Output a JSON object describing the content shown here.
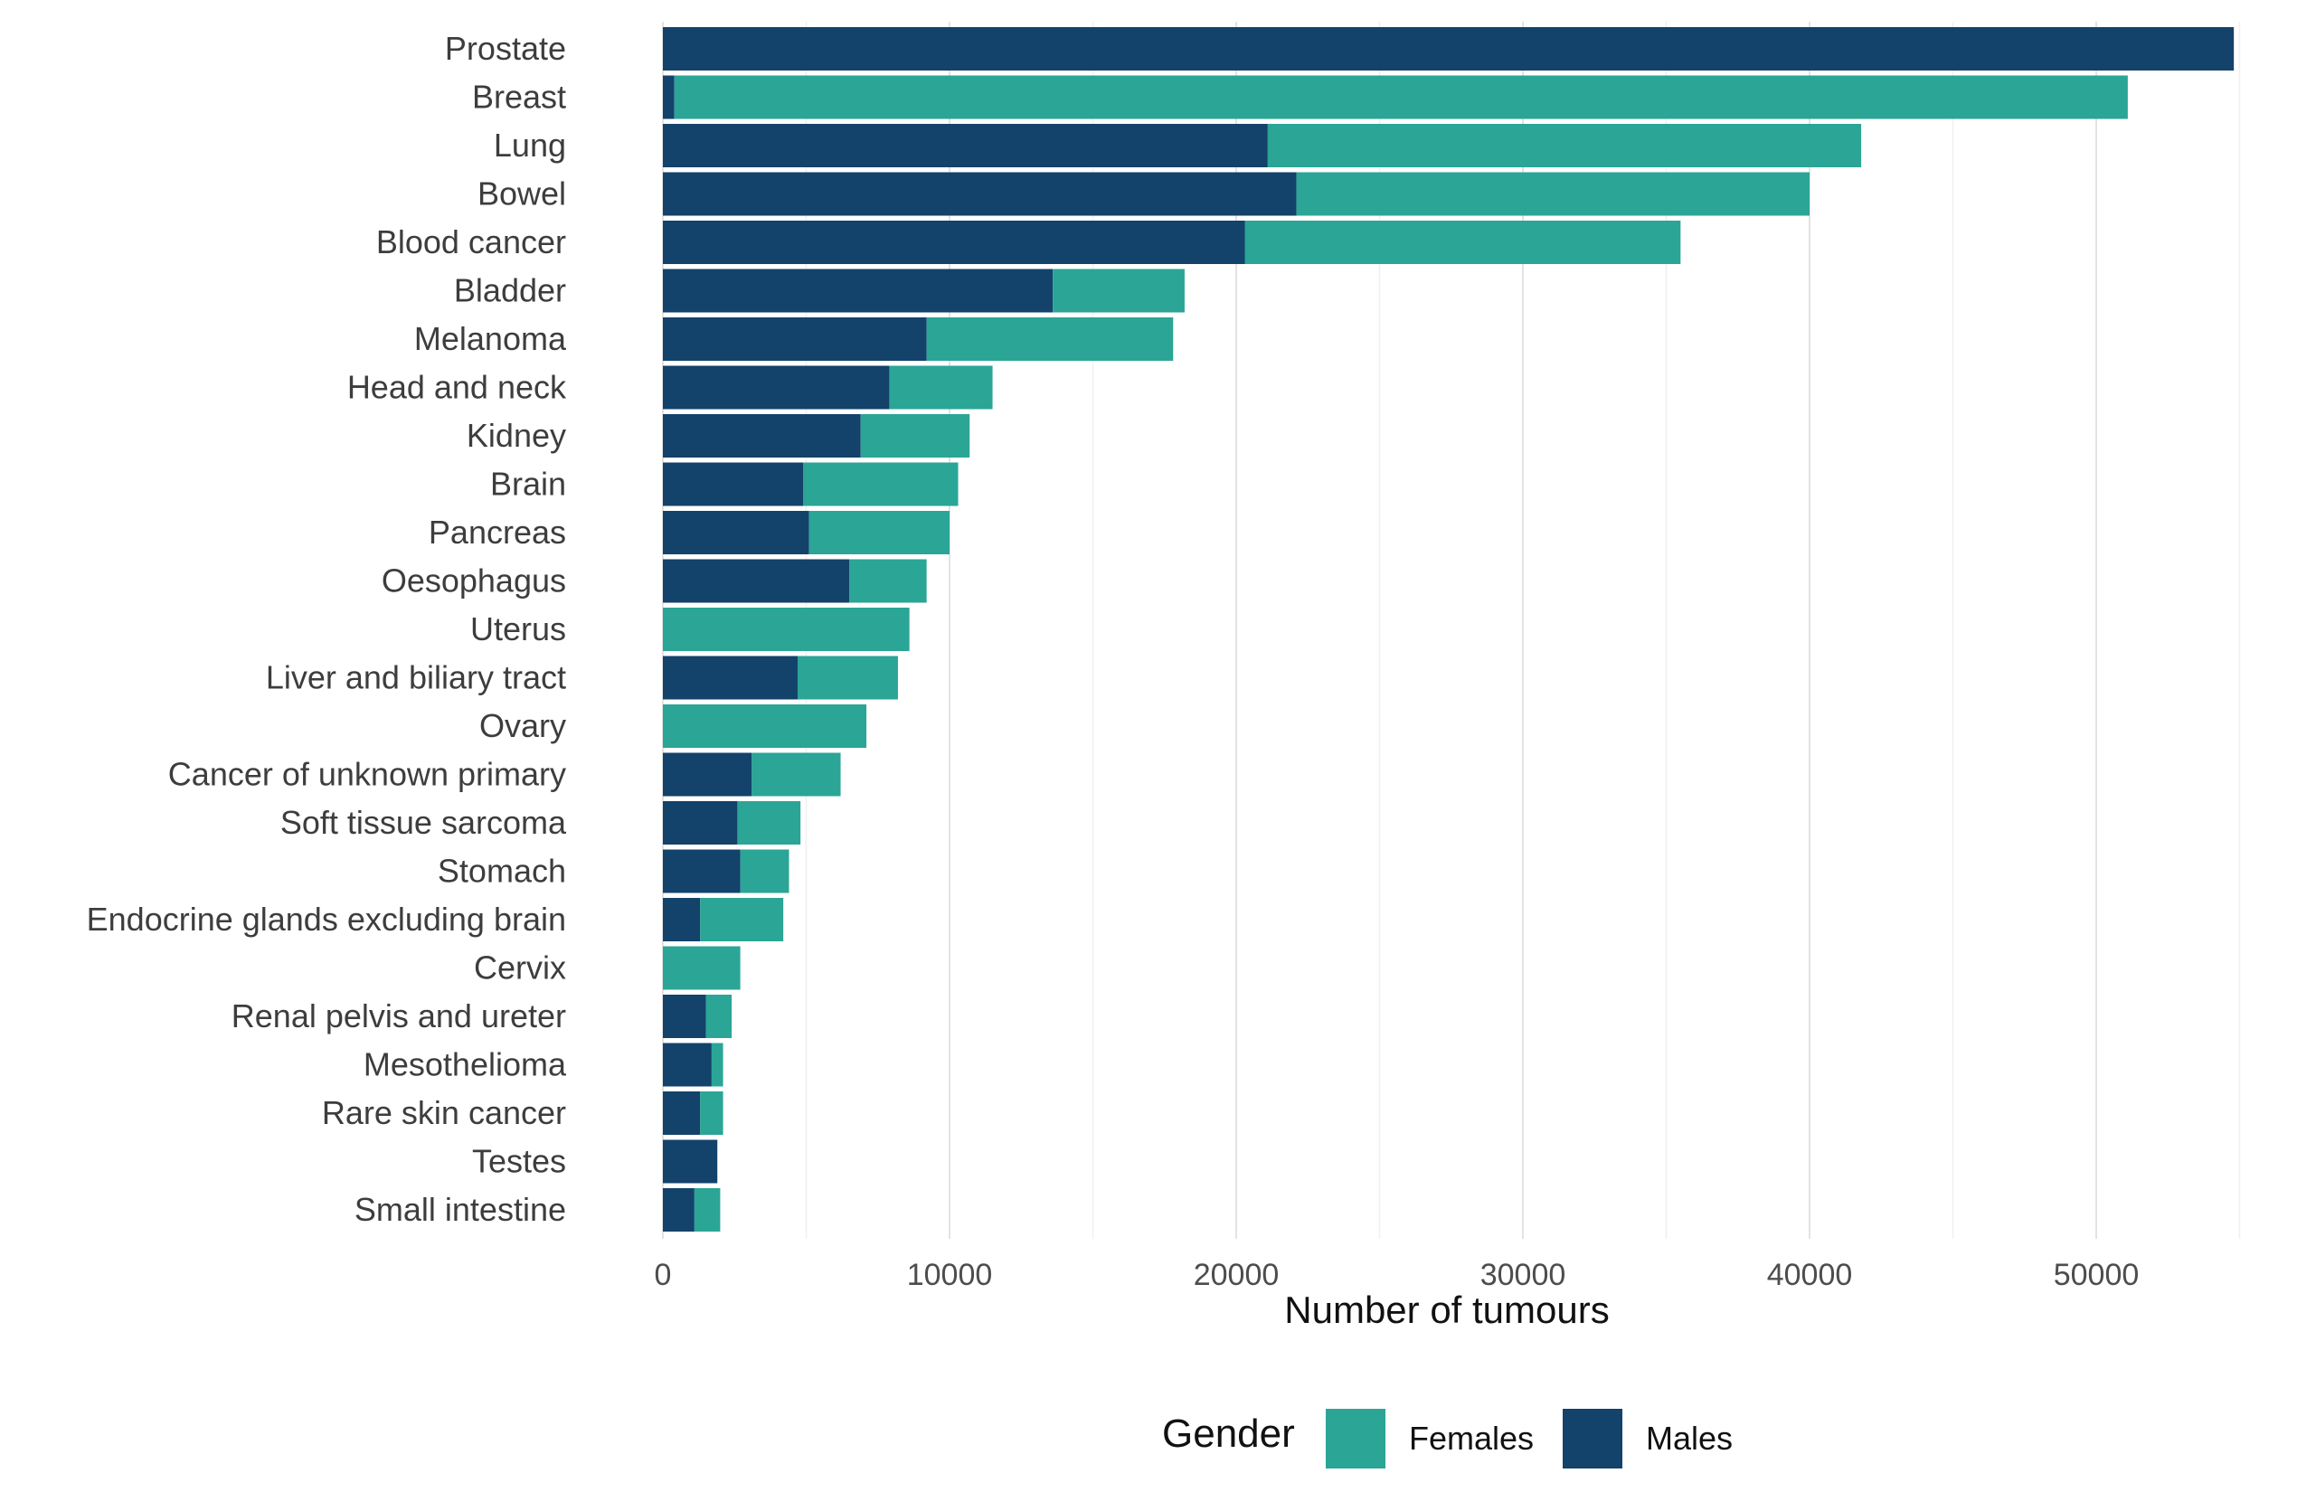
{
  "chart_data": {
    "type": "bar",
    "orientation": "horizontal",
    "stacked": true,
    "categories": [
      "Prostate",
      "Breast",
      "Lung",
      "Bowel",
      "Blood cancer",
      "Bladder",
      "Melanoma",
      "Head and neck",
      "Kidney",
      "Brain",
      "Pancreas",
      "Oesophagus",
      "Uterus",
      "Liver and biliary tract",
      "Ovary",
      "Cancer of unknown primary",
      "Soft tissue sarcoma",
      "Stomach",
      "Endocrine glands excluding brain",
      "Cervix",
      "Renal pelvis and ureter",
      "Mesothelioma",
      "Rare skin cancer",
      "Testes",
      "Small intestine"
    ],
    "series": [
      {
        "name": "Males",
        "color": "#13426b",
        "values": [
          54800,
          400,
          21100,
          22100,
          20300,
          13600,
          9200,
          7900,
          6900,
          4900,
          5100,
          6500,
          0,
          4700,
          0,
          3100,
          2600,
          2700,
          1300,
          0,
          1500,
          1700,
          1300,
          1900,
          1100
        ]
      },
      {
        "name": "Females",
        "color": "#2aa596",
        "values": [
          0,
          50700,
          20700,
          17900,
          15200,
          4600,
          8600,
          3600,
          3800,
          5400,
          4900,
          2700,
          8600,
          3500,
          7100,
          3100,
          2200,
          1700,
          2900,
          2700,
          900,
          400,
          800,
          0,
          900
        ]
      }
    ],
    "title": "",
    "xlabel": "Number of tumours",
    "ylabel": "",
    "xlim": [
      0,
      55000
    ],
    "x_ticks": [
      0,
      10000,
      20000,
      30000,
      40000,
      50000
    ],
    "x_tick_labels": [
      "0",
      "10000",
      "20000",
      "30000",
      "40000",
      "50000"
    ],
    "grid": true,
    "legend": {
      "title": "Gender",
      "placement": "bottom",
      "entries": [
        {
          "label": "Females",
          "color": "#2aa596"
        },
        {
          "label": "Males",
          "color": "#13426b"
        }
      ]
    }
  }
}
